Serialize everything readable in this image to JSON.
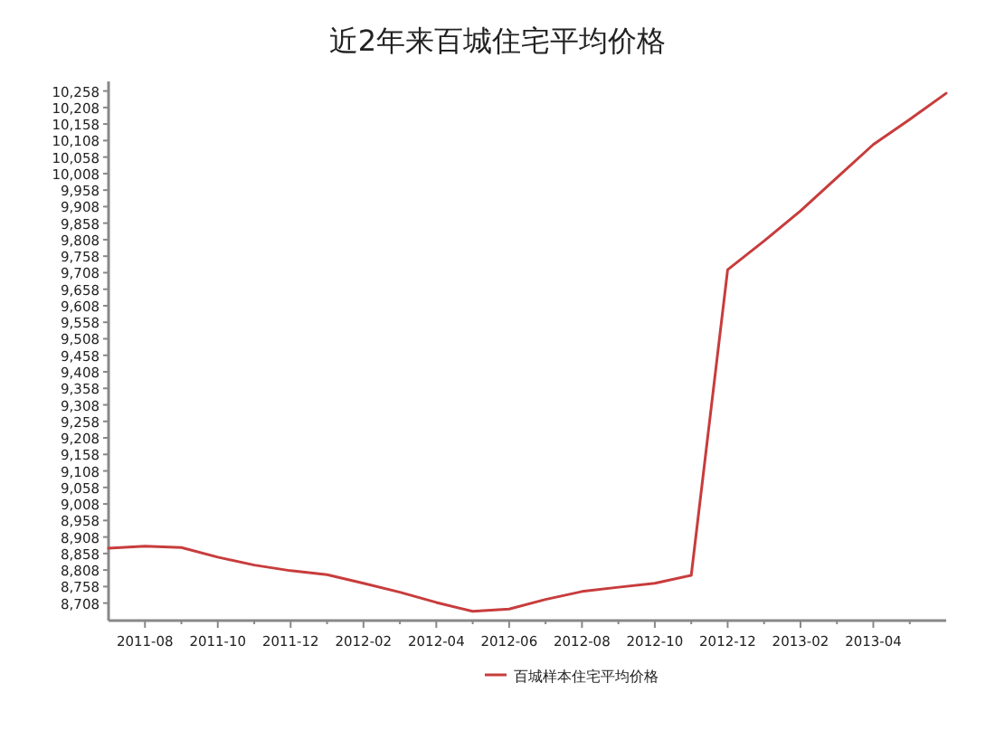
{
  "chart_data": {
    "type": "line",
    "title": "近2年来百城住宅平均价格",
    "x": [
      "2011-07",
      "2011-08",
      "2011-09",
      "2011-10",
      "2011-11",
      "2011-12",
      "2012-01",
      "2012-02",
      "2012-03",
      "2012-04",
      "2012-05",
      "2012-06",
      "2012-07",
      "2012-08",
      "2012-09",
      "2012-10",
      "2012-11",
      "2012-12",
      "2013-01",
      "2013-02",
      "2013-03",
      "2013-04",
      "2013-05",
      "2013-06"
    ],
    "series": [
      {
        "name": "百城样本住宅平均价格",
        "color": "#c83c3c",
        "values": [
          8874,
          8880,
          8876,
          8847,
          8823,
          8806,
          8794,
          8768,
          8741,
          8710,
          8683,
          8690,
          8719,
          8743,
          8756,
          8768,
          8792,
          9717,
          9804,
          9895,
          9996,
          10096,
          10172,
          10251
        ]
      }
    ],
    "xlim": [
      "2011-07",
      "2013-06"
    ],
    "xticks": [
      {
        "value": "2011-08",
        "label": "2011-08"
      },
      {
        "value": "2011-09",
        "label": null
      },
      {
        "value": "2011-10",
        "label": "2011-10"
      },
      {
        "value": "2011-11",
        "label": null
      },
      {
        "value": "2011-12",
        "label": "2011-12"
      },
      {
        "value": "2012-01",
        "label": null
      },
      {
        "value": "2012-02",
        "label": "2012-02"
      },
      {
        "value": "2012-03",
        "label": null
      },
      {
        "value": "2012-04",
        "label": "2012-04"
      },
      {
        "value": "2012-05",
        "label": null
      },
      {
        "value": "2012-06",
        "label": "2012-06"
      },
      {
        "value": "2012-07",
        "label": null
      },
      {
        "value": "2012-08",
        "label": "2012-08"
      },
      {
        "value": "2012-09",
        "label": null
      },
      {
        "value": "2012-10",
        "label": "2012-10"
      },
      {
        "value": "2012-11",
        "label": null
      },
      {
        "value": "2012-12",
        "label": "2012-12"
      },
      {
        "value": "2013-01",
        "label": null
      },
      {
        "value": "2013-02",
        "label": "2013-02"
      },
      {
        "value": "2013-03",
        "label": null
      },
      {
        "value": "2013-04",
        "label": "2013-04"
      },
      {
        "value": "2013-05",
        "label": null
      }
    ],
    "ylim": [
      8655,
      10287
    ],
    "yticks": [
      {
        "value": 8708,
        "label": "8,708"
      },
      {
        "value": 8758,
        "label": "8,758"
      },
      {
        "value": 8808,
        "label": "8,808"
      },
      {
        "value": 8858,
        "label": "8,858"
      },
      {
        "value": 8908,
        "label": "8,908"
      },
      {
        "value": 8958,
        "label": "8,958"
      },
      {
        "value": 9008,
        "label": "9,008"
      },
      {
        "value": 9058,
        "label": "9,058"
      },
      {
        "value": 9108,
        "label": "9,108"
      },
      {
        "value": 9158,
        "label": "9,158"
      },
      {
        "value": 9208,
        "label": "9,208"
      },
      {
        "value": 9258,
        "label": "9,258"
      },
      {
        "value": 9308,
        "label": "9,308"
      },
      {
        "value": 9358,
        "label": "9,358"
      },
      {
        "value": 9408,
        "label": "9,408"
      },
      {
        "value": 9458,
        "label": "9,458"
      },
      {
        "value": 9508,
        "label": "9,508"
      },
      {
        "value": 9558,
        "label": "9,558"
      },
      {
        "value": 9608,
        "label": "9,608"
      },
      {
        "value": 9658,
        "label": "9,658"
      },
      {
        "value": 9708,
        "label": "9,708"
      },
      {
        "value": 9758,
        "label": "9,758"
      },
      {
        "value": 9808,
        "label": "9,808"
      },
      {
        "value": 9858,
        "label": "9,858"
      },
      {
        "value": 9908,
        "label": "9,908"
      },
      {
        "value": 9958,
        "label": "9,958"
      },
      {
        "value": 10008,
        "label": "10,008"
      },
      {
        "value": 10058,
        "label": "10,058"
      },
      {
        "value": 10108,
        "label": "10,108"
      },
      {
        "value": 10158,
        "label": "10,158"
      },
      {
        "value": 10208,
        "label": "10,208"
      },
      {
        "value": 10258,
        "label": "10,258"
      }
    ],
    "grid": false,
    "legend": "bottom",
    "marker": "none",
    "line_style": "solid"
  }
}
